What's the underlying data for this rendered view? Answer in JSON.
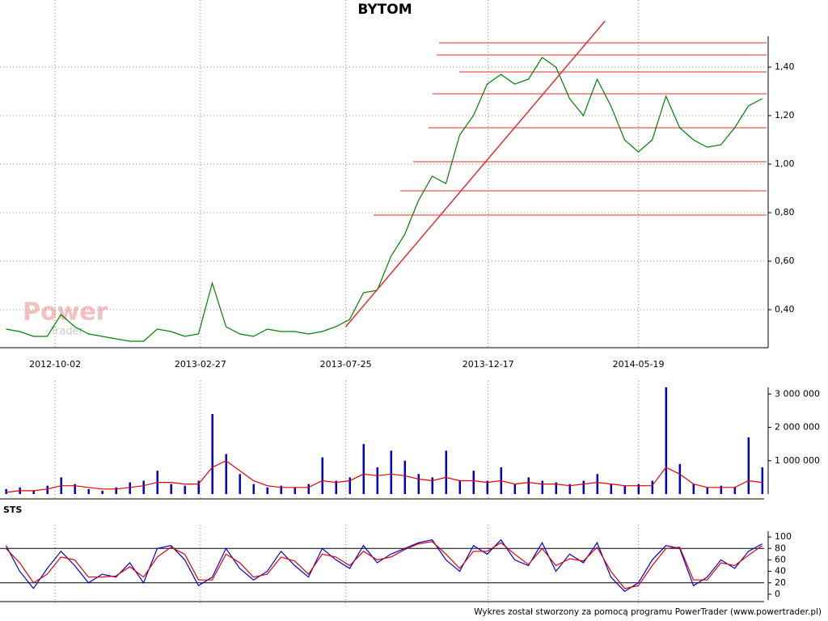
{
  "chart_data": [
    {
      "type": "line",
      "title": "BYTOM",
      "color": "#008000",
      "grid": true,
      "xlim": [
        "2012-08-11",
        "2014-09-24"
      ],
      "xticks": [
        "2012-10-02",
        "2013-02-27",
        "2013-07-25",
        "2013-12-17",
        "2014-05-19"
      ],
      "ylim": [
        0.25,
        1.61
      ],
      "yticks": [
        {
          "value": 0.4,
          "label": "0,40"
        },
        {
          "value": 0.6,
          "label": "0,60"
        },
        {
          "value": 0.8,
          "label": "0,80"
        },
        {
          "value": 1.0,
          "label": "1,00"
        },
        {
          "value": 1.2,
          "label": "1,20"
        },
        {
          "value": 1.4,
          "label": "1,40"
        }
      ],
      "x": [
        "2012-08-13",
        "2012-08-27",
        "2012-09-10",
        "2012-09-24",
        "2012-10-08",
        "2012-10-22",
        "2012-11-05",
        "2012-11-19",
        "2012-12-03",
        "2012-12-17",
        "2012-12-31",
        "2013-01-14",
        "2013-01-28",
        "2013-02-11",
        "2013-02-25",
        "2013-03-11",
        "2013-03-25",
        "2013-04-08",
        "2013-04-22",
        "2013-05-06",
        "2013-05-20",
        "2013-06-03",
        "2013-06-17",
        "2013-07-01",
        "2013-07-15",
        "2013-07-29",
        "2013-08-12",
        "2013-08-26",
        "2013-09-09",
        "2013-09-23",
        "2013-10-07",
        "2013-10-21",
        "2013-11-04",
        "2013-11-18",
        "2013-12-02",
        "2013-12-16",
        "2013-12-30",
        "2014-01-13",
        "2014-01-27",
        "2014-02-10",
        "2014-02-24",
        "2014-03-10",
        "2014-03-24",
        "2014-04-07",
        "2014-04-21",
        "2014-05-05",
        "2014-05-19",
        "2014-06-02",
        "2014-06-16",
        "2014-06-30",
        "2014-07-14",
        "2014-07-28",
        "2014-08-11",
        "2014-08-25",
        "2014-09-08",
        "2014-09-22"
      ],
      "values": [
        0.32,
        0.31,
        0.29,
        0.29,
        0.38,
        0.33,
        0.3,
        0.29,
        0.28,
        0.27,
        0.27,
        0.32,
        0.31,
        0.29,
        0.3,
        0.51,
        0.33,
        0.3,
        0.29,
        0.32,
        0.31,
        0.31,
        0.3,
        0.31,
        0.33,
        0.36,
        0.47,
        0.48,
        0.62,
        0.71,
        0.85,
        0.95,
        0.92,
        1.12,
        1.2,
        1.33,
        1.37,
        1.33,
        1.35,
        1.44,
        1.4,
        1.27,
        1.2,
        1.35,
        1.24,
        1.1,
        1.05,
        1.1,
        1.28,
        1.15,
        1.1,
        1.07,
        1.08,
        1.15,
        1.24,
        1.27
      ],
      "hlines": [
        1.5,
        1.45,
        1.38,
        1.29,
        1.15,
        1.01,
        0.89,
        0.79
      ],
      "hline_color": "#e03030",
      "trendline": {
        "x": [
          "2013-07-25",
          "2014-04-15"
        ],
        "values": [
          0.33,
          1.59
        ],
        "color": "#e03030"
      }
    },
    {
      "type": "bar",
      "ylim": [
        0,
        3200000
      ],
      "yticks": [
        {
          "value": 1000000,
          "label": "1 000 000"
        },
        {
          "value": 2000000,
          "label": "2 000 000"
        },
        {
          "value": 3000000,
          "label": "3 000 000"
        }
      ],
      "series": [
        {
          "type": "bar",
          "color": "#0000cc",
          "values": [
            150000,
            200000,
            100000,
            250000,
            500000,
            300000,
            150000,
            100000,
            200000,
            350000,
            400000,
            700000,
            300000,
            250000,
            400000,
            2400000,
            1200000,
            600000,
            300000,
            200000,
            250000,
            200000,
            300000,
            1100000,
            400000,
            500000,
            1500000,
            800000,
            1300000,
            1000000,
            600000,
            500000,
            1300000,
            400000,
            700000,
            400000,
            800000,
            300000,
            500000,
            400000,
            350000,
            300000,
            400000,
            600000,
            300000,
            250000,
            300000,
            400000,
            3200000,
            900000,
            300000,
            200000,
            250000,
            200000,
            1700000,
            800000
          ]
        },
        {
          "type": "line",
          "color": "#e00000",
          "values": [
            50000,
            100000,
            100000,
            150000,
            250000,
            250000,
            200000,
            150000,
            150000,
            200000,
            250000,
            350000,
            350000,
            300000,
            300000,
            800000,
            1000000,
            700000,
            400000,
            250000,
            200000,
            200000,
            200000,
            400000,
            350000,
            400000,
            600000,
            550000,
            600000,
            550000,
            450000,
            400000,
            500000,
            400000,
            400000,
            350000,
            400000,
            300000,
            350000,
            300000,
            300000,
            250000,
            300000,
            350000,
            300000,
            250000,
            250000,
            250000,
            800000,
            600000,
            300000,
            200000,
            200000,
            200000,
            400000,
            350000
          ]
        }
      ]
    },
    {
      "type": "line",
      "title": "STS",
      "ylim": [
        -10,
        110
      ],
      "yticks": [
        0,
        20,
        40,
        60,
        80,
        100
      ],
      "hlines": [
        20,
        80
      ],
      "series": [
        {
          "color": "#0000dd",
          "values": [
            85,
            40,
            10,
            45,
            75,
            50,
            20,
            35,
            30,
            55,
            20,
            80,
            85,
            60,
            15,
            30,
            80,
            45,
            25,
            40,
            75,
            50,
            30,
            80,
            60,
            45,
            85,
            55,
            70,
            80,
            90,
            95,
            60,
            40,
            85,
            70,
            95,
            60,
            50,
            90,
            40,
            70,
            55,
            90,
            30,
            5,
            20,
            60,
            85,
            80,
            15,
            30,
            60,
            45,
            75,
            88
          ]
        },
        {
          "color": "#e00000",
          "values": [
            80,
            55,
            20,
            35,
            65,
            60,
            30,
            30,
            32,
            48,
            30,
            65,
            82,
            70,
            25,
            25,
            70,
            55,
            30,
            35,
            65,
            58,
            35,
            70,
            65,
            50,
            75,
            60,
            65,
            78,
            88,
            92,
            70,
            45,
            75,
            75,
            90,
            70,
            52,
            80,
            50,
            62,
            58,
            82,
            40,
            10,
            15,
            50,
            80,
            82,
            25,
            25,
            55,
            50,
            68,
            85
          ]
        }
      ]
    }
  ],
  "watermark": {
    "first": "Power",
    "second": "Trader"
  },
  "footer": "Wykres został stworzony za pomocą programu PowerTrader (www.powertrader.pl)"
}
